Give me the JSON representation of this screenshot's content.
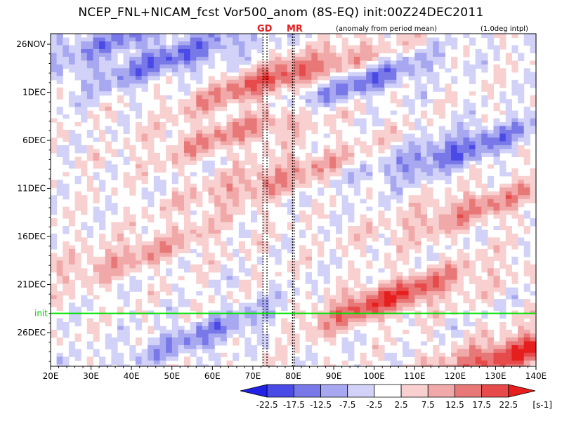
{
  "chart_data": {
    "type": "heatmap",
    "title": "NCEP_FNL+NICAM_fcst Vor500_anom (8S-EQ) init:00Z24DEC2011",
    "subtitle_left": "(anomaly from period mean)",
    "subtitle_right": "(1.0deg intpl)",
    "x_ticks": [
      "20E",
      "30E",
      "40E",
      "50E",
      "60E",
      "70E",
      "80E",
      "90E",
      "100E",
      "110E",
      "120E",
      "130E",
      "140E"
    ],
    "x_tick_values": [
      20,
      30,
      40,
      50,
      60,
      70,
      80,
      90,
      100,
      110,
      120,
      130,
      140
    ],
    "xlim": [
      20,
      140
    ],
    "y_ticks": [
      "26NOV",
      "1DEC",
      "6DEC",
      "11DEC",
      "16DEC",
      "21DEC",
      "26DEC"
    ],
    "y_tick_days": [
      0,
      5,
      10,
      15,
      20,
      25,
      30
    ],
    "ylim_days": [
      -1.1,
      33.5
    ],
    "init_label": "init",
    "init_day": 28,
    "markers": [
      {
        "label": "GD",
        "lon": 72.5,
        "lon2": 73.5
      },
      {
        "label": "MR",
        "lon": 79.8,
        "lon2": 80.2
      }
    ],
    "colorbar": {
      "levels": [
        "-22.5",
        "-17.5",
        "-12.5",
        "-7.5",
        "-2.5",
        "2.5",
        "7.5",
        "12.5",
        "17.5",
        "22.5"
      ],
      "unit": "[s-1]",
      "colors": [
        "#2020e6",
        "#4a4ae6",
        "#7878e8",
        "#a8a8f0",
        "#d2d2f8",
        "#ffffff",
        "#f8d0d0",
        "#f0a8a8",
        "#e87878",
        "#e64a4a",
        "#e61e1e"
      ]
    },
    "anomaly_bands": [
      {
        "day": -0.5,
        "lon": 35,
        "value": -12
      },
      {
        "day": 1.5,
        "lon": 50,
        "value": -15
      },
      {
        "day": 3.5,
        "lon": 78,
        "value": 20
      },
      {
        "day": 4.5,
        "lon": 92,
        "value": -18
      },
      {
        "day": 8.5,
        "lon": 70,
        "value": 15
      },
      {
        "day": 11,
        "lon": 120,
        "value": -16
      },
      {
        "day": 14,
        "lon": 75,
        "value": 12
      },
      {
        "day": 17,
        "lon": 125,
        "value": 12
      },
      {
        "day": 22,
        "lon": 40,
        "value": 10
      },
      {
        "day": 26.5,
        "lon": 103,
        "value": 20
      },
      {
        "day": 30,
        "lon": 60,
        "value": -12
      },
      {
        "day": 32,
        "lon": 135,
        "value": 22
      }
    ]
  }
}
